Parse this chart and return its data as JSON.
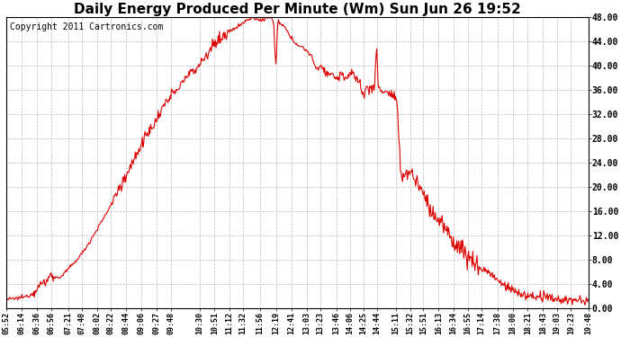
{
  "title": "Daily Energy Produced Per Minute (Wm) Sun Jun 26 19:52",
  "copyright": "Copyright 2011 Cartronics.com",
  "line_color": "#dd0000",
  "background_color": "#ffffff",
  "plot_bg_color": "#ffffff",
  "ylim": [
    0,
    48
  ],
  "yticks": [
    0,
    4,
    8,
    12,
    16,
    20,
    24,
    28,
    32,
    36,
    40,
    44,
    48
  ],
  "ytick_labels": [
    "0.00",
    "4.00",
    "8.00",
    "12.00",
    "16.00",
    "20.00",
    "24.00",
    "28.00",
    "32.00",
    "36.00",
    "40.00",
    "44.00",
    "48.00"
  ],
  "xtick_labels": [
    "05:52",
    "06:14",
    "06:36",
    "06:56",
    "07:21",
    "07:40",
    "08:02",
    "08:22",
    "08:44",
    "09:06",
    "09:27",
    "09:48",
    "10:30",
    "10:51",
    "11:12",
    "11:32",
    "11:56",
    "12:19",
    "12:41",
    "13:03",
    "13:23",
    "13:46",
    "14:06",
    "14:25",
    "14:44",
    "15:11",
    "15:32",
    "15:51",
    "16:13",
    "16:34",
    "16:55",
    "17:14",
    "17:38",
    "18:00",
    "18:21",
    "18:43",
    "19:03",
    "19:23",
    "19:48"
  ],
  "grid_color": "#bbbbbb",
  "grid_style": "--",
  "line_width": 0.8,
  "title_fontsize": 11,
  "tick_fontsize": 7,
  "copyright_fontsize": 7
}
